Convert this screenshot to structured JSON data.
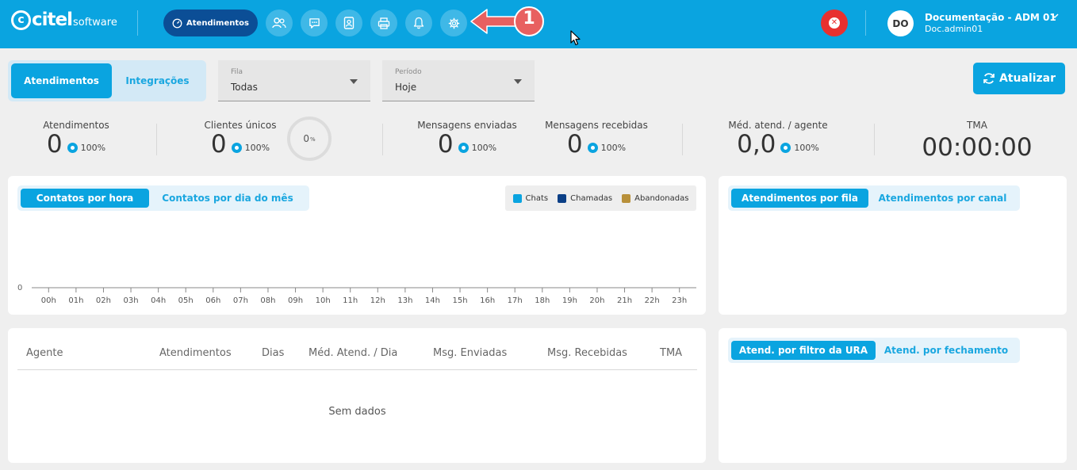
{
  "brand": {
    "logo_text": "citel",
    "logo_sub": "software"
  },
  "nav": {
    "active_label": "Atendimentos",
    "buttons": [
      "users-icon",
      "chat-icon",
      "contact-book-icon",
      "printer-icon",
      "bell-icon",
      "gear-icon"
    ]
  },
  "annotation": {
    "number": "1"
  },
  "user": {
    "initials": "DO",
    "name": "Documentação - ADM 01",
    "login": "Doc.admin01"
  },
  "view_tabs": {
    "active": "Atendimentos",
    "inactive": "Integrações"
  },
  "filters": {
    "fila": {
      "label": "Fila",
      "value": "Todas"
    },
    "periodo": {
      "label": "Período",
      "value": "Hoje"
    }
  },
  "refresh_label": "Atualizar",
  "stats": {
    "atendimentos": {
      "title": "Atendimentos",
      "value": "0",
      "pct": "100%"
    },
    "clientes": {
      "title": "Clientes únicos",
      "value": "0",
      "pct": "100%",
      "ring_value": "0",
      "ring_unit": "%"
    },
    "enviadas": {
      "title": "Mensagens enviadas",
      "value": "0",
      "pct": "100%"
    },
    "recebidas": {
      "title": "Mensagens recebidas",
      "value": "0",
      "pct": "100%"
    },
    "media": {
      "title": "Méd. atend. / agente",
      "value": "0,0",
      "pct": "100%"
    },
    "tma": {
      "title": "TMA",
      "value": "00:00:00"
    }
  },
  "contacts_card": {
    "tab_active": "Contatos por hora",
    "tab_inactive": "Contatos por dia do mês",
    "legend": [
      {
        "label": "Chats",
        "color": "#0aa4e0"
      },
      {
        "label": "Chamadas",
        "color": "#0b3f86"
      },
      {
        "label": "Abandonadas",
        "color": "#b8903a"
      }
    ]
  },
  "chart_data": {
    "type": "bar",
    "categories": [
      "00h",
      "01h",
      "02h",
      "03h",
      "04h",
      "05h",
      "06h",
      "07h",
      "08h",
      "09h",
      "10h",
      "11h",
      "12h",
      "13h",
      "14h",
      "15h",
      "16h",
      "17h",
      "18h",
      "19h",
      "20h",
      "21h",
      "22h",
      "23h"
    ],
    "series": [
      {
        "name": "Chats",
        "values": [
          0,
          0,
          0,
          0,
          0,
          0,
          0,
          0,
          0,
          0,
          0,
          0,
          0,
          0,
          0,
          0,
          0,
          0,
          0,
          0,
          0,
          0,
          0,
          0
        ]
      },
      {
        "name": "Chamadas",
        "values": [
          0,
          0,
          0,
          0,
          0,
          0,
          0,
          0,
          0,
          0,
          0,
          0,
          0,
          0,
          0,
          0,
          0,
          0,
          0,
          0,
          0,
          0,
          0,
          0
        ]
      },
      {
        "name": "Abandonadas",
        "values": [
          0,
          0,
          0,
          0,
          0,
          0,
          0,
          0,
          0,
          0,
          0,
          0,
          0,
          0,
          0,
          0,
          0,
          0,
          0,
          0,
          0,
          0,
          0,
          0
        ]
      }
    ],
    "y_tick": "0",
    "legend_position": "top-right"
  },
  "fila_card": {
    "tab_active": "Atendimentos por fila",
    "tab_inactive": "Atendimentos por canal"
  },
  "agent_table": {
    "headers": [
      "Agente",
      "Atendimentos",
      "Dias",
      "Méd. Atend. / Dia",
      "Msg. Enviadas",
      "Msg. Recebidas",
      "TMA"
    ],
    "empty_text": "Sem dados"
  },
  "ura_card": {
    "tab_active": "Atend. por filtro da URA",
    "tab_inactive": "Atend. por fechamento"
  },
  "colors": {
    "primary": "#0aa4e0",
    "nav_active": "#0b4e96",
    "danger": "#e8302f",
    "annotation": "#e86060"
  }
}
